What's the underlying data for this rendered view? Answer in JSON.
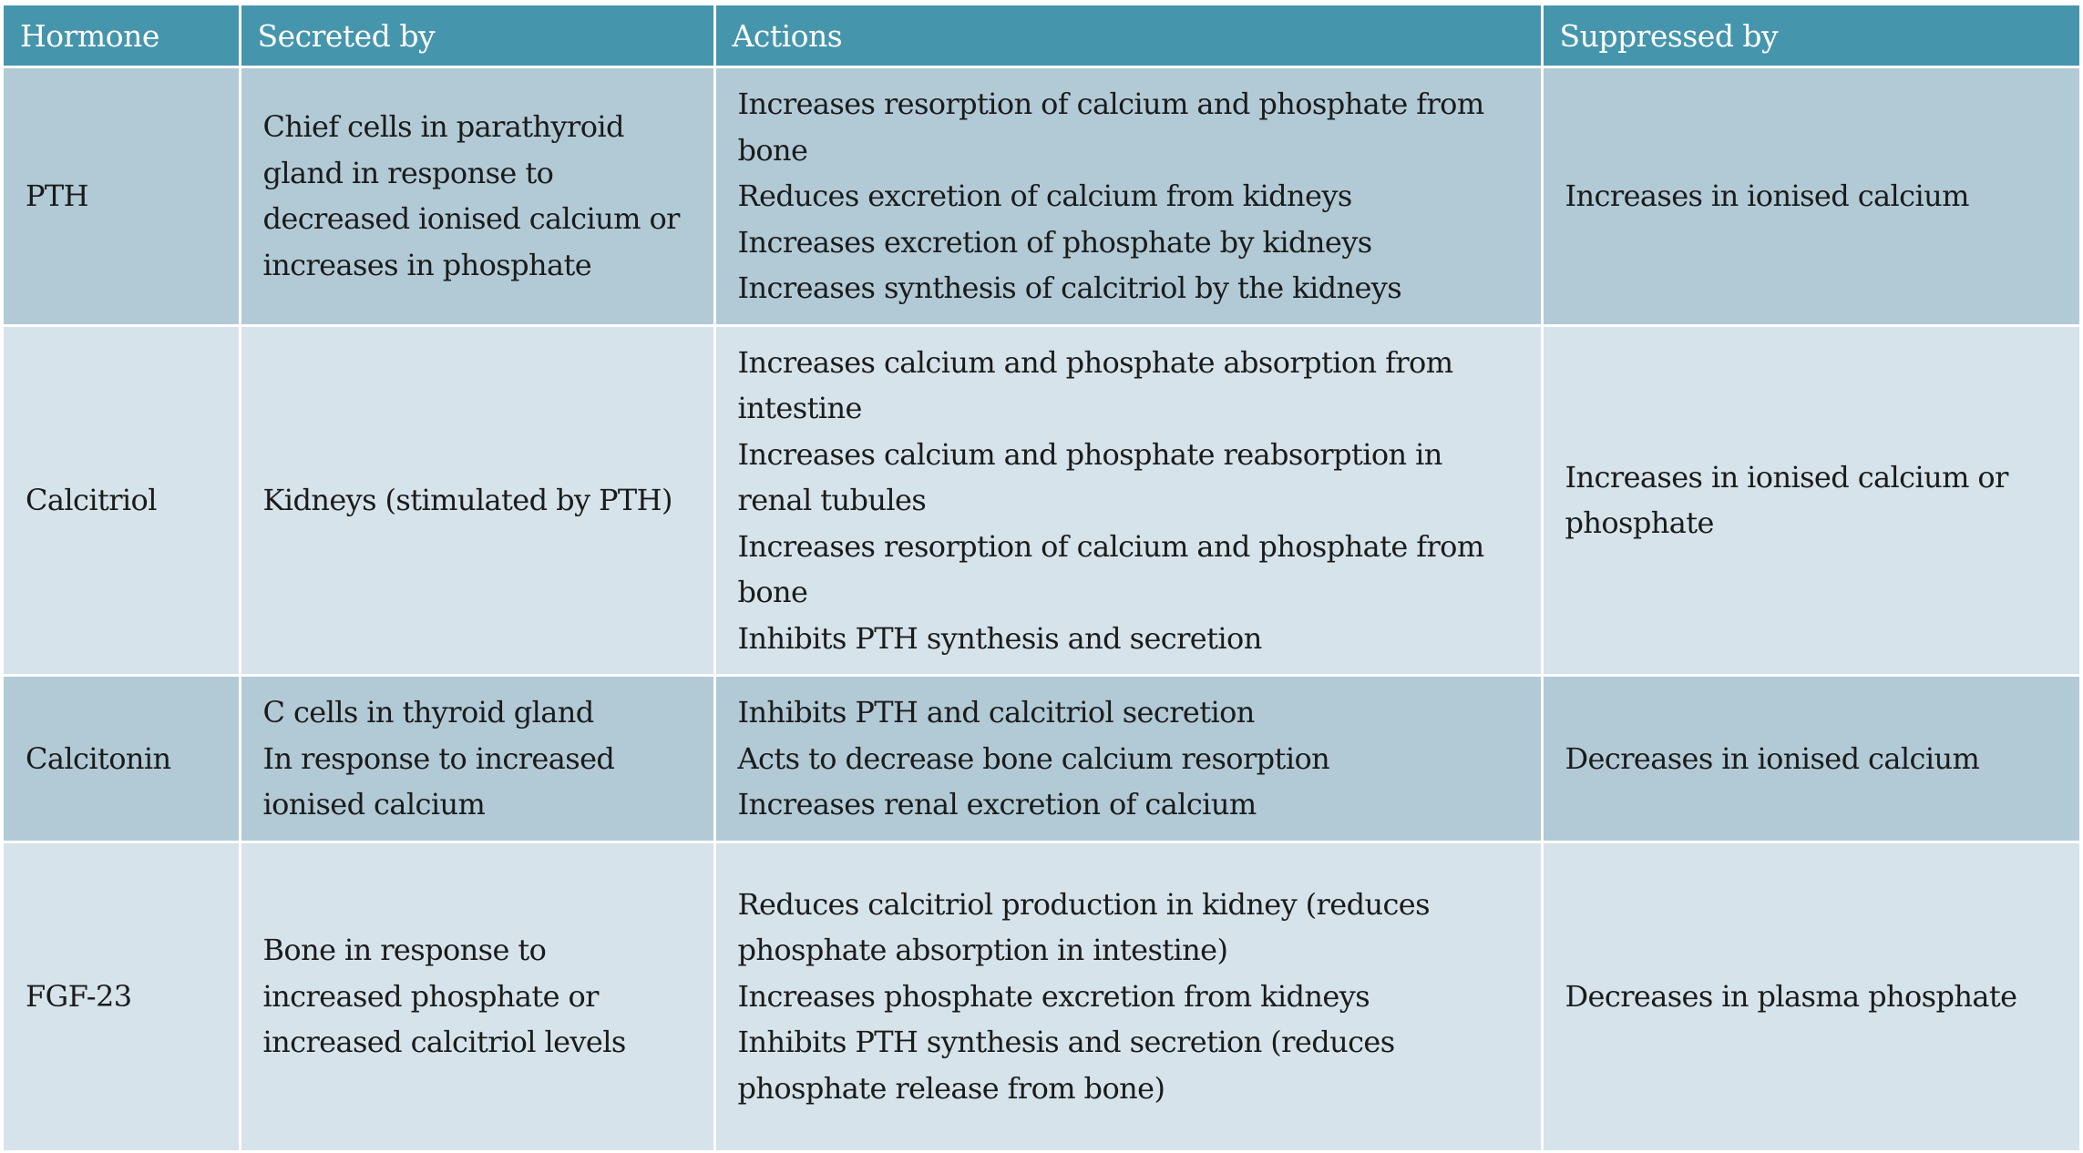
{
  "headers": [
    "Hormone",
    "Secreted by",
    "Actions",
    "Suppressed by"
  ],
  "rows": [
    {
      "hormone": "PTH",
      "secreted_by": [
        "Chief cells in parathyroid gland in response to decreased ionised calcium or increases in phosphate"
      ],
      "actions": [
        "Increases resorption of calcium and phosphate from bone",
        "Reduces excretion of calcium from kidneys",
        "Increases excretion of phosphate by kidneys",
        "Increases synthesis of calcitriol by the kidneys"
      ],
      "suppressed_by": "Increases in ionised calcium"
    },
    {
      "hormone": "Calcitriol",
      "secreted_by": [
        "Kidneys (stimulated by PTH)"
      ],
      "actions": [
        "Increases calcium and phosphate absorption from intestine",
        "Increases calcium and phosphate reabsorption in renal tubules",
        "Increases resorption of calcium and phosphate from bone",
        "Inhibits PTH synthesis and secretion"
      ],
      "suppressed_by": "Increases in ionised calcium or phosphate"
    },
    {
      "hormone": "Calcitonin",
      "secreted_by": [
        "C cells in thyroid gland",
        "In response to increased ionised calcium"
      ],
      "actions": [
        "Inhibits PTH and calcitriol secretion",
        "Acts to decrease bone calcium resorption",
        "Increases renal excretion of calcium"
      ],
      "suppressed_by": "Decreases in ionised calcium"
    },
    {
      "hormone": "FGF-23",
      "secreted_by": [
        "Bone in response to increased phosphate or increased calcitriol levels"
      ],
      "actions": [
        "Reduces calcitriol production in kidney (reduces phosphate absorption in intestine)",
        "Increases phosphate excretion from kidneys",
        "Inhibits PTH synthesis and secretion (reduces phosphate release from bone)"
      ],
      "suppressed_by": "Decreases in plasma phosphate"
    }
  ],
  "colors": {
    "header": "#4595ad",
    "row_dark": "#b1cad6",
    "row_light": "#d6e3ea"
  }
}
